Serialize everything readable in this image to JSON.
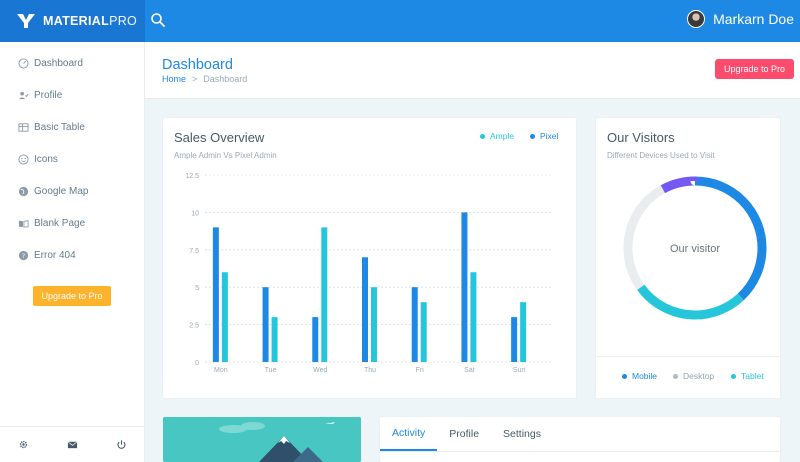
{
  "topbar": {
    "brand_bold": "MATERIAL",
    "brand_light": "PRO",
    "user_name": "Markarn Doe"
  },
  "sidebar": {
    "items": [
      {
        "label": "Dashboard",
        "icon": "gauge-icon"
      },
      {
        "label": "Profile",
        "icon": "user-check-icon"
      },
      {
        "label": "Basic Table",
        "icon": "table-icon"
      },
      {
        "label": "Icons",
        "icon": "smiley-icon"
      },
      {
        "label": "Google Map",
        "icon": "globe-icon"
      },
      {
        "label": "Blank Page",
        "icon": "book-open-icon"
      },
      {
        "label": "Error 404",
        "icon": "help-circle-icon"
      }
    ],
    "upgrade_label": "Upgrade to Pro"
  },
  "page_header": {
    "title": "Dashboard",
    "breadcrumb_home": "Home",
    "breadcrumb_separator": ">",
    "breadcrumb_current": "Dashboard",
    "upgrade_label": "Upgrade to Pro"
  },
  "sales": {
    "title": "Sales Overview",
    "subtitle": "Ample Admin Vs Pixel Admin",
    "legend": [
      {
        "name": "Ample",
        "color": "#26c6da"
      },
      {
        "name": "Pixel",
        "color": "#1e88e5"
      }
    ]
  },
  "chart_data": {
    "type": "bar",
    "categories": [
      "Mon",
      "Tue",
      "Wed",
      "Thu",
      "Fri",
      "Sat",
      "Sun"
    ],
    "series": [
      {
        "name": "Pixel",
        "color": "#1e88e5",
        "values": [
          9,
          5,
          3,
          7,
          5,
          10,
          3
        ]
      },
      {
        "name": "Ample",
        "color": "#26c6da",
        "values": [
          6,
          3,
          9,
          5,
          4,
          6,
          4
        ]
      }
    ],
    "yticks": [
      "12.5",
      "10",
      "7.5",
      "5",
      "2.5",
      "0"
    ],
    "ylim": [
      0,
      12.5
    ],
    "grid": true
  },
  "visitors": {
    "title": "Our Visitors",
    "subtitle": "Different Devices Used to Visit",
    "center_label": "Our visitor",
    "legend": [
      {
        "name": "Mobile",
        "color": "#1e88e5"
      },
      {
        "name": "Desktop",
        "color": "#b0bcc4"
      },
      {
        "name": "Tablet",
        "color": "#26c6da"
      }
    ],
    "donut": [
      {
        "name": "Mobile",
        "color": "#1e88e5",
        "fraction": 0.38
      },
      {
        "name": "Tablet",
        "color": "#26c6da",
        "fraction": 0.27
      },
      {
        "name": "Desktop",
        "color": "#e9edf0",
        "fraction": 0.27
      },
      {
        "name": "Other",
        "color": "#745af2",
        "fraction": 0.08
      }
    ]
  },
  "tabs": [
    {
      "label": "Activity",
      "active": true
    },
    {
      "label": "Profile",
      "active": false
    },
    {
      "label": "Settings",
      "active": false
    }
  ]
}
